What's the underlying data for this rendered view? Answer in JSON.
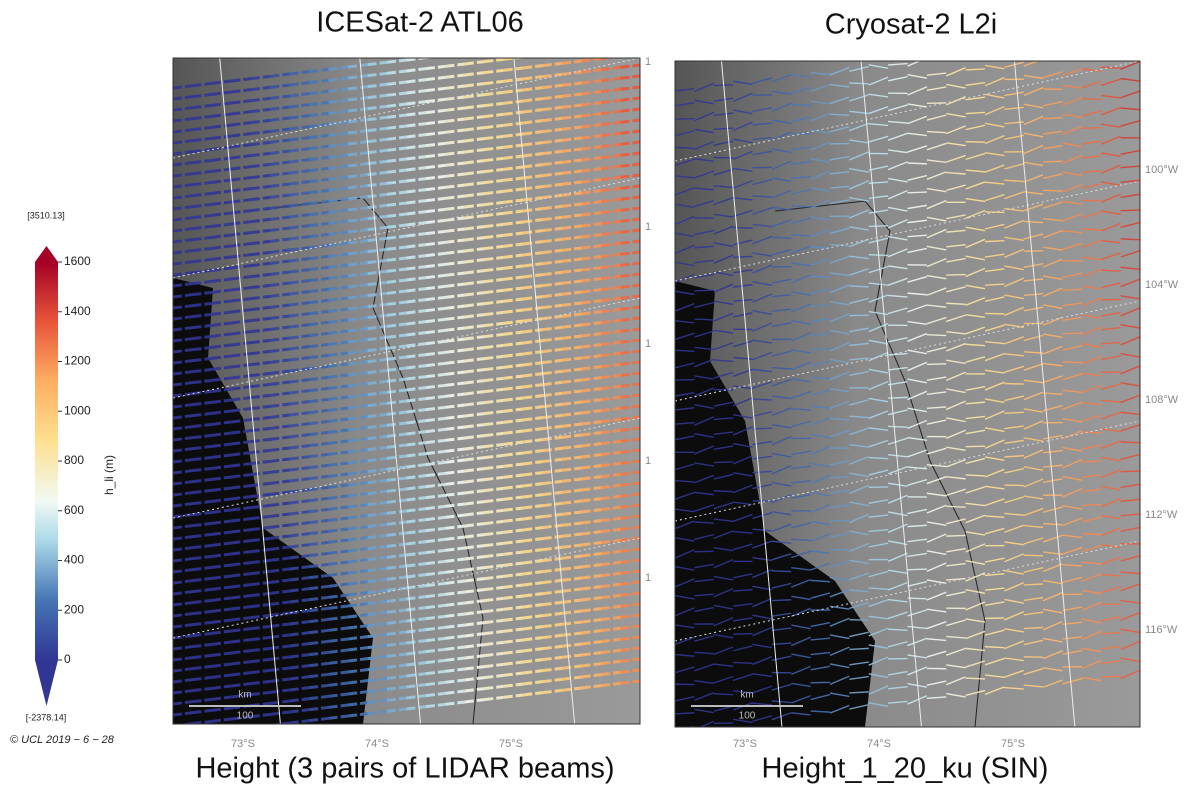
{
  "left_panel": {
    "title": "ICESat-2  ATL06",
    "caption": "Height (3 pairs of LIDAR beams)",
    "lat_labels": [
      "73°S",
      "74°S",
      "75°S"
    ],
    "edge_labels": [
      "1",
      "1",
      "1",
      "1",
      "1"
    ],
    "scale_bar": {
      "unit": "km",
      "length": "100"
    }
  },
  "right_panel": {
    "title": "Cryosat-2 L2i",
    "caption": "Height_1_20_ku (SIN)",
    "lat_labels": [
      "73°S",
      "74°S",
      "75°S"
    ],
    "lon_labels": [
      "100°W",
      "104°W",
      "108°W",
      "112°W",
      "116°W"
    ],
    "scale_bar": {
      "unit": "km",
      "length": "100"
    }
  },
  "colorbar": {
    "max_label": "[3510.13]",
    "min_label": "[-2378.14]",
    "label": "h_li (m)",
    "ticks": [
      0,
      200,
      400,
      600,
      800,
      1000,
      1200,
      1400,
      1600
    ]
  },
  "copyright": "© UCL 2019 − 6 − 28"
}
